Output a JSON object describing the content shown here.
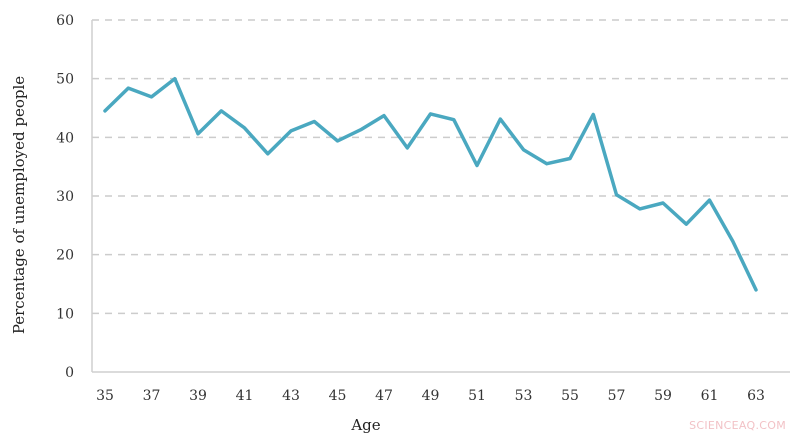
{
  "chart_data": {
    "type": "line",
    "title": "",
    "xlabel": "Age",
    "ylabel": "Percentage of unemployed people",
    "x": [
      35,
      36,
      37,
      38,
      39,
      40,
      41,
      42,
      43,
      44,
      45,
      46,
      47,
      48,
      49,
      50,
      51,
      52,
      53,
      54,
      55,
      56,
      57,
      58,
      59,
      60,
      61,
      62,
      63
    ],
    "series": [
      {
        "name": "Percentage of unemployed people",
        "color": "#4aa8c0",
        "values": [
          44.5,
          48.4,
          46.9,
          50.0,
          40.6,
          44.5,
          41.6,
          37.2,
          41.1,
          42.7,
          39.4,
          41.3,
          43.7,
          38.2,
          44.0,
          43.0,
          35.2,
          43.1,
          37.9,
          35.5,
          36.4,
          43.9,
          30.2,
          27.8,
          28.8,
          25.2,
          29.3,
          22.3,
          14.0
        ]
      }
    ],
    "ylim": [
      0,
      60
    ],
    "xlim": [
      35,
      63
    ],
    "yticks": [
      0,
      10,
      20,
      30,
      40,
      50,
      60
    ],
    "xticks": [
      35,
      37,
      39,
      41,
      43,
      45,
      47,
      49,
      51,
      53,
      55,
      57,
      59,
      61,
      63
    ],
    "grid": "horizontal dashed",
    "legend": "none"
  },
  "watermark": "SCIENCEAQ.COM"
}
